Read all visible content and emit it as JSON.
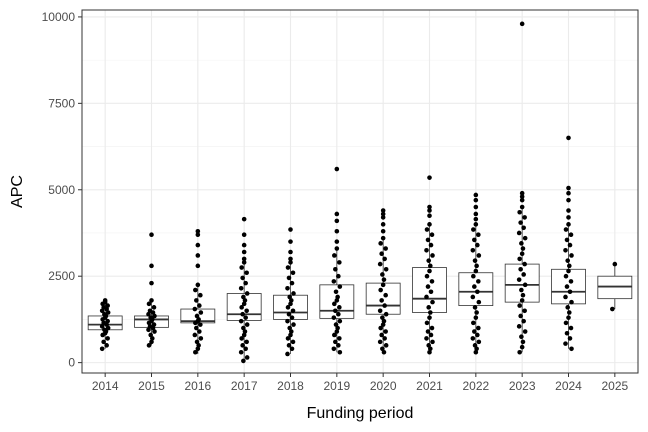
{
  "chart_data": {
    "type": "box",
    "xlabel": "Funding period",
    "ylabel": "APC",
    "ylim": [
      -300,
      10200
    ],
    "yticks": [
      0,
      2500,
      5000,
      7500,
      10000
    ],
    "grid": true,
    "categories": [
      "2014",
      "2015",
      "2016",
      "2017",
      "2018",
      "2019",
      "2020",
      "2021",
      "2022",
      "2023",
      "2024",
      "2025"
    ],
    "boxes": [
      {
        "q1": 950,
        "median": 1100,
        "q3": 1350,
        "whisker_low": 400,
        "whisker_high": 1750
      },
      {
        "q1": 1020,
        "median": 1250,
        "q3": 1350,
        "whisker_low": 500,
        "whisker_high": 1800
      },
      {
        "q1": 1150,
        "median": 1200,
        "q3": 1550,
        "whisker_low": 250,
        "whisker_high": 2250
      },
      {
        "q1": 1220,
        "median": 1400,
        "q3": 2000,
        "whisker_low": 50,
        "whisker_high": 2900
      },
      {
        "q1": 1250,
        "median": 1450,
        "q3": 1950,
        "whisker_low": 250,
        "whisker_high": 2900
      },
      {
        "q1": 1280,
        "median": 1500,
        "q3": 2250,
        "whisker_low": 300,
        "whisker_high": 3300
      },
      {
        "q1": 1400,
        "median": 1650,
        "q3": 2300,
        "whisker_low": 300,
        "whisker_high": 3600
      },
      {
        "q1": 1450,
        "median": 1850,
        "q3": 2750,
        "whisker_low": 300,
        "whisker_high": 4000
      },
      {
        "q1": 1650,
        "median": 2050,
        "q3": 2600,
        "whisker_low": 300,
        "whisker_high": 4000
      },
      {
        "q1": 1750,
        "median": 2250,
        "q3": 2850,
        "whisker_low": 300,
        "whisker_high": 4500
      },
      {
        "q1": 1700,
        "median": 2050,
        "q3": 2700,
        "whisker_low": 400,
        "whisker_high": 4000
      },
      {
        "q1": 1850,
        "median": 2200,
        "q3": 2500,
        "whisker_low": 1550,
        "whisker_high": 2850
      }
    ],
    "outliers": [
      [
        1800
      ],
      [
        3700,
        2800,
        2300
      ],
      [
        3800,
        3700,
        3400,
        3100,
        2800
      ],
      [
        4150,
        3700,
        3400,
        3200,
        3000
      ],
      [
        3850,
        3500,
        3200,
        3000
      ],
      [
        5600,
        4300,
        4100,
        3800,
        3500
      ],
      [
        4400,
        4300,
        4200,
        4000,
        3800
      ],
      [
        5350,
        4500,
        4400,
        4250
      ],
      [
        4850,
        4700,
        4500,
        4300,
        4150
      ],
      [
        9800,
        4900,
        4800,
        4700
      ],
      [
        6500,
        5050,
        4900,
        4700,
        4400,
        4200
      ],
      []
    ],
    "points": [
      [
        1750,
        1700,
        1650,
        1600,
        1550,
        1500,
        1450,
        1400,
        1350,
        1300,
        1250,
        1200,
        1150,
        1100,
        1050,
        1000,
        950,
        900,
        850,
        800,
        700,
        600,
        500,
        400
      ],
      [
        1800,
        1700,
        1600,
        1500,
        1450,
        1400,
        1350,
        1300,
        1250,
        1200,
        1150,
        1100,
        1050,
        1000,
        950,
        900,
        800,
        700,
        600,
        500
      ],
      [
        2250,
        2100,
        1950,
        1800,
        1650,
        1550,
        1450,
        1350,
        1250,
        1200,
        1150,
        1100,
        1000,
        900,
        800,
        700,
        600,
        500,
        400,
        300
      ],
      [
        2900,
        2750,
        2600,
        2450,
        2300,
        2150,
        2000,
        1900,
        1800,
        1700,
        1600,
        1500,
        1400,
        1300,
        1200,
        1100,
        1000,
        900,
        800,
        700,
        600,
        500,
        400,
        300,
        150,
        50
      ],
      [
        2900,
        2750,
        2600,
        2450,
        2300,
        2150,
        2000,
        1900,
        1800,
        1700,
        1600,
        1500,
        1400,
        1300,
        1200,
        1100,
        1000,
        900,
        800,
        700,
        600,
        500,
        400,
        250
      ],
      [
        3300,
        3100,
        2900,
        2700,
        2500,
        2350,
        2200,
        2050,
        1900,
        1800,
        1700,
        1600,
        1500,
        1400,
        1300,
        1200,
        1100,
        1000,
        900,
        800,
        700,
        600,
        500,
        400,
        300
      ],
      [
        3600,
        3450,
        3300,
        3150,
        3000,
        2850,
        2700,
        2550,
        2400,
        2250,
        2100,
        1950,
        1800,
        1650,
        1500,
        1400,
        1300,
        1200,
        1100,
        1000,
        900,
        800,
        700,
        600,
        500,
        400,
        300
      ],
      [
        4000,
        3850,
        3700,
        3550,
        3400,
        3250,
        3100,
        2950,
        2800,
        2650,
        2500,
        2350,
        2200,
        2050,
        1900,
        1750,
        1600,
        1450,
        1300,
        1150,
        1000,
        900,
        800,
        700,
        600,
        500,
        400,
        300
      ],
      [
        4000,
        3850,
        3700,
        3550,
        3400,
        3250,
        3100,
        2950,
        2800,
        2650,
        2500,
        2350,
        2200,
        2050,
        1900,
        1750,
        1600,
        1450,
        1300,
        1150,
        1000,
        900,
        800,
        700,
        600,
        500,
        400,
        300
      ],
      [
        4500,
        4350,
        4200,
        4050,
        3900,
        3750,
        3600,
        3450,
        3300,
        3150,
        3000,
        2850,
        2700,
        2550,
        2400,
        2250,
        2100,
        1950,
        1800,
        1650,
        1500,
        1350,
        1200,
        1050,
        900,
        750,
        600,
        450,
        300
      ],
      [
        4000,
        3850,
        3700,
        3550,
        3400,
        3250,
        3100,
        2950,
        2800,
        2650,
        2500,
        2350,
        2200,
        2050,
        1900,
        1750,
        1600,
        1450,
        1300,
        1150,
        1000,
        850,
        700,
        550,
        400
      ],
      [
        2850,
        1550
      ]
    ]
  }
}
